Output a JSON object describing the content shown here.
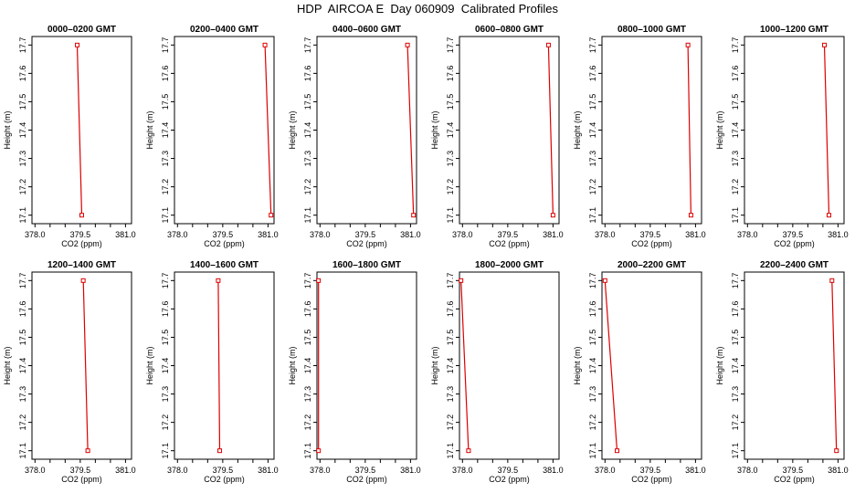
{
  "title": "HDP  AIRCOA E  Day 060909  Calibrated Profiles",
  "colors": {
    "line": "#dd0000",
    "axis": "#000000"
  },
  "chart_data": [
    {
      "type": "line",
      "title": "0000–0200 GMT",
      "xlabel": "CO2 (ppm)",
      "ylabel": "Height (m)",
      "xlim": [
        377.9,
        381.2
      ],
      "ylim": [
        17.07,
        17.73
      ],
      "xticks": [
        "378.0",
        "379.5",
        "381.0"
      ],
      "xticks_minor": [
        378.5,
        379.0,
        380.0,
        380.5
      ],
      "yticks": [
        "17.1",
        "17.2",
        "17.3",
        "17.4",
        "17.5",
        "17.6",
        "17.7"
      ],
      "series": [
        {
          "x": [
            379.4,
            379.55
          ],
          "y": [
            17.7,
            17.1
          ]
        }
      ]
    },
    {
      "type": "line",
      "title": "0200–0400 GMT",
      "xlabel": "CO2 (ppm)",
      "ylabel": "Height (m)",
      "xlim": [
        377.9,
        381.2
      ],
      "ylim": [
        17.07,
        17.73
      ],
      "xticks": [
        "378.0",
        "379.5",
        "381.0"
      ],
      "xticks_minor": [
        378.5,
        379.0,
        380.0,
        380.5
      ],
      "yticks": [
        "17.1",
        "17.2",
        "17.3",
        "17.4",
        "17.5",
        "17.6",
        "17.7"
      ],
      "series": [
        {
          "x": [
            380.9,
            381.1
          ],
          "y": [
            17.7,
            17.1
          ]
        }
      ]
    },
    {
      "type": "line",
      "title": "0400–0600 GMT",
      "xlabel": "CO2 (ppm)",
      "ylabel": "Height (m)",
      "xlim": [
        377.9,
        381.2
      ],
      "ylim": [
        17.07,
        17.73
      ],
      "xticks": [
        "378.0",
        "379.5",
        "381.0"
      ],
      "xticks_minor": [
        378.5,
        379.0,
        380.0,
        380.5
      ],
      "yticks": [
        "17.1",
        "17.2",
        "17.3",
        "17.4",
        "17.5",
        "17.6",
        "17.7"
      ],
      "series": [
        {
          "x": [
            380.9,
            381.1
          ],
          "y": [
            17.7,
            17.1
          ]
        }
      ]
    },
    {
      "type": "line",
      "title": "0600–0800 GMT",
      "xlabel": "CO2 (ppm)",
      "ylabel": "Height (m)",
      "xlim": [
        377.9,
        381.2
      ],
      "ylim": [
        17.07,
        17.73
      ],
      "xticks": [
        "378.0",
        "379.5",
        "381.0"
      ],
      "xticks_minor": [
        378.5,
        379.0,
        380.0,
        380.5
      ],
      "yticks": [
        "17.1",
        "17.2",
        "17.3",
        "17.4",
        "17.5",
        "17.6",
        "17.7"
      ],
      "series": [
        {
          "x": [
            380.85,
            381.0
          ],
          "y": [
            17.7,
            17.1
          ]
        }
      ]
    },
    {
      "type": "line",
      "title": "0800–1000 GMT",
      "xlabel": "CO2 (ppm)",
      "ylabel": "Height (m)",
      "xlim": [
        377.9,
        381.2
      ],
      "ylim": [
        17.07,
        17.73
      ],
      "xticks": [
        "378.0",
        "379.5",
        "381.0"
      ],
      "xticks_minor": [
        378.5,
        379.0,
        380.0,
        380.5
      ],
      "yticks": [
        "17.1",
        "17.2",
        "17.3",
        "17.4",
        "17.5",
        "17.6",
        "17.7"
      ],
      "series": [
        {
          "x": [
            380.75,
            380.85
          ],
          "y": [
            17.7,
            17.1
          ]
        }
      ]
    },
    {
      "type": "line",
      "title": "1000–1200 GMT",
      "xlabel": "CO2 (ppm)",
      "ylabel": "Height (m)",
      "xlim": [
        377.9,
        381.2
      ],
      "ylim": [
        17.07,
        17.73
      ],
      "xticks": [
        "378.0",
        "379.5",
        "381.0"
      ],
      "xticks_minor": [
        378.5,
        379.0,
        380.0,
        380.5
      ],
      "yticks": [
        "17.1",
        "17.2",
        "17.3",
        "17.4",
        "17.5",
        "17.6",
        "17.7"
      ],
      "series": [
        {
          "x": [
            380.55,
            380.7
          ],
          "y": [
            17.7,
            17.1
          ]
        }
      ]
    },
    {
      "type": "line",
      "title": "1200–1400 GMT",
      "xlabel": "CO2 (ppm)",
      "ylabel": "Height (m)",
      "xlim": [
        377.9,
        381.2
      ],
      "ylim": [
        17.07,
        17.73
      ],
      "xticks": [
        "378.0",
        "379.5",
        "381.0"
      ],
      "xticks_minor": [
        378.5,
        379.0,
        380.0,
        380.5
      ],
      "yticks": [
        "17.1",
        "17.2",
        "17.3",
        "17.4",
        "17.5",
        "17.6",
        "17.7"
      ],
      "series": [
        {
          "x": [
            379.6,
            379.75
          ],
          "y": [
            17.7,
            17.1
          ]
        }
      ]
    },
    {
      "type": "line",
      "title": "1400–1600 GMT",
      "xlabel": "CO2 (ppm)",
      "ylabel": "Height (m)",
      "xlim": [
        377.9,
        381.2
      ],
      "ylim": [
        17.07,
        17.73
      ],
      "xticks": [
        "378.0",
        "379.5",
        "381.0"
      ],
      "xticks_minor": [
        378.5,
        379.0,
        380.0,
        380.5
      ],
      "yticks": [
        "17.1",
        "17.2",
        "17.3",
        "17.4",
        "17.5",
        "17.6",
        "17.7"
      ],
      "series": [
        {
          "x": [
            379.35,
            379.4
          ],
          "y": [
            17.7,
            17.1
          ]
        }
      ]
    },
    {
      "type": "line",
      "title": "1600–1800 GMT",
      "xlabel": "CO2 (ppm)",
      "ylabel": "Height (m)",
      "xlim": [
        377.9,
        381.2
      ],
      "ylim": [
        17.07,
        17.73
      ],
      "xticks": [
        "378.0",
        "379.5",
        "381.0"
      ],
      "xticks_minor": [
        378.5,
        379.0,
        380.0,
        380.5
      ],
      "yticks": [
        "17.1",
        "17.2",
        "17.3",
        "17.4",
        "17.5",
        "17.6",
        "17.7"
      ],
      "series": [
        {
          "x": [
            377.95,
            377.95
          ],
          "y": [
            17.7,
            17.1
          ]
        }
      ]
    },
    {
      "type": "line",
      "title": "1800–2000 GMT",
      "xlabel": "CO2 (ppm)",
      "ylabel": "Height (m)",
      "xlim": [
        377.9,
        381.2
      ],
      "ylim": [
        17.07,
        17.73
      ],
      "xticks": [
        "378.0",
        "379.5",
        "381.0"
      ],
      "xticks_minor": [
        378.5,
        379.0,
        380.0,
        380.5
      ],
      "yticks": [
        "17.1",
        "17.2",
        "17.3",
        "17.4",
        "17.5",
        "17.6",
        "17.7"
      ],
      "series": [
        {
          "x": [
            377.95,
            378.2
          ],
          "y": [
            17.7,
            17.1
          ]
        }
      ]
    },
    {
      "type": "line",
      "title": "2000–2200 GMT",
      "xlabel": "CO2 (ppm)",
      "ylabel": "Height (m)",
      "xlim": [
        377.9,
        381.2
      ],
      "ylim": [
        17.07,
        17.73
      ],
      "xticks": [
        "378.0",
        "379.5",
        "381.0"
      ],
      "xticks_minor": [
        378.5,
        379.0,
        380.0,
        380.5
      ],
      "yticks": [
        "17.1",
        "17.2",
        "17.3",
        "17.4",
        "17.5",
        "17.6",
        "17.7"
      ],
      "series": [
        {
          "x": [
            378.0,
            378.4
          ],
          "y": [
            17.7,
            17.1
          ]
        }
      ]
    },
    {
      "type": "line",
      "title": "2200–2400 GMT",
      "xlabel": "CO2 (ppm)",
      "ylabel": "Height (m)",
      "xlim": [
        377.9,
        381.2
      ],
      "ylim": [
        17.07,
        17.73
      ],
      "xticks": [
        "378.0",
        "379.5",
        "381.0"
      ],
      "xticks_minor": [
        378.5,
        379.0,
        380.0,
        380.5
      ],
      "yticks": [
        "17.1",
        "17.2",
        "17.3",
        "17.4",
        "17.5",
        "17.6",
        "17.7"
      ],
      "series": [
        {
          "x": [
            380.8,
            380.95
          ],
          "y": [
            17.7,
            17.1
          ]
        }
      ]
    }
  ]
}
